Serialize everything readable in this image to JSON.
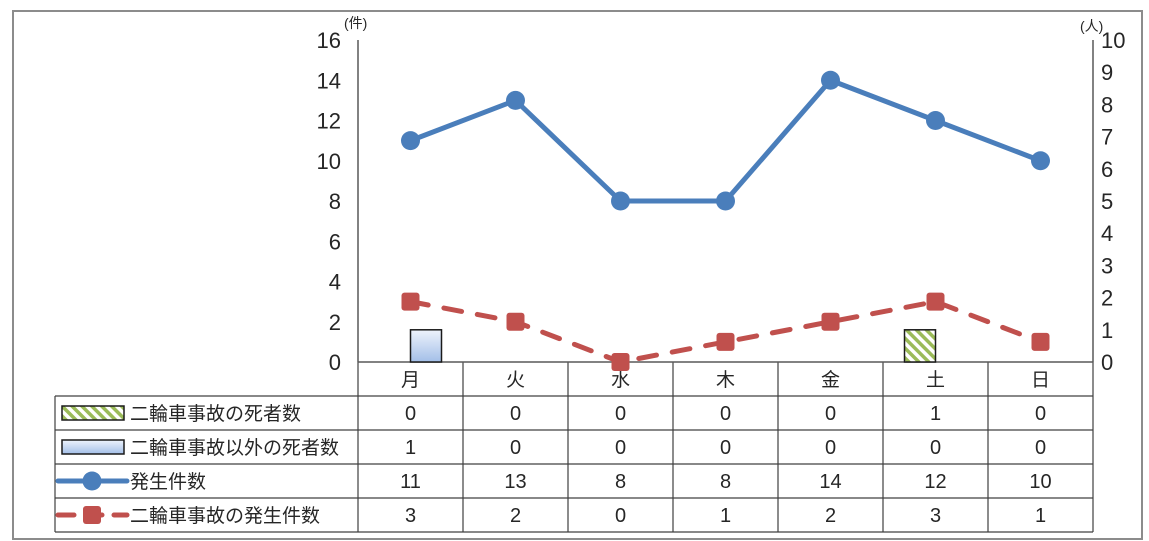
{
  "chart_data": {
    "type": "line",
    "categories": [
      "月",
      "火",
      "水",
      "木",
      "金",
      "土",
      "日"
    ],
    "left_axis": {
      "unit_label": "(件)",
      "ylim": [
        0,
        16
      ],
      "ticks": [
        0,
        2,
        4,
        6,
        8,
        10,
        12,
        14,
        16
      ]
    },
    "right_axis": {
      "unit_label": "(人)",
      "ylim": [
        0,
        10
      ],
      "ticks": [
        0,
        1,
        2,
        3,
        4,
        5,
        6,
        7,
        8,
        9,
        10
      ]
    },
    "grid": false,
    "legend": "data-table",
    "series": [
      {
        "name": "二輪車事故の死者数",
        "type": "bar",
        "axis": "right",
        "pattern": "diagonal-hatch",
        "color": "#9bbb59",
        "values": [
          0,
          0,
          0,
          0,
          0,
          1,
          0
        ]
      },
      {
        "name": "二輪車事故以外の死者数",
        "type": "bar",
        "axis": "right",
        "color": "#a3bfe8",
        "values": [
          1,
          0,
          0,
          0,
          0,
          0,
          0
        ]
      },
      {
        "name": "発生件数",
        "type": "line",
        "axis": "left",
        "marker": "circle",
        "color": "#4a7ebb",
        "values": [
          11,
          13,
          8,
          8,
          14,
          12,
          10
        ]
      },
      {
        "name": "二輪車事故の発生件数",
        "type": "line",
        "axis": "left",
        "marker": "square",
        "line_style": "dashed",
        "color": "#c0504d",
        "values": [
          3,
          2,
          0,
          1,
          2,
          3,
          1
        ]
      }
    ]
  }
}
